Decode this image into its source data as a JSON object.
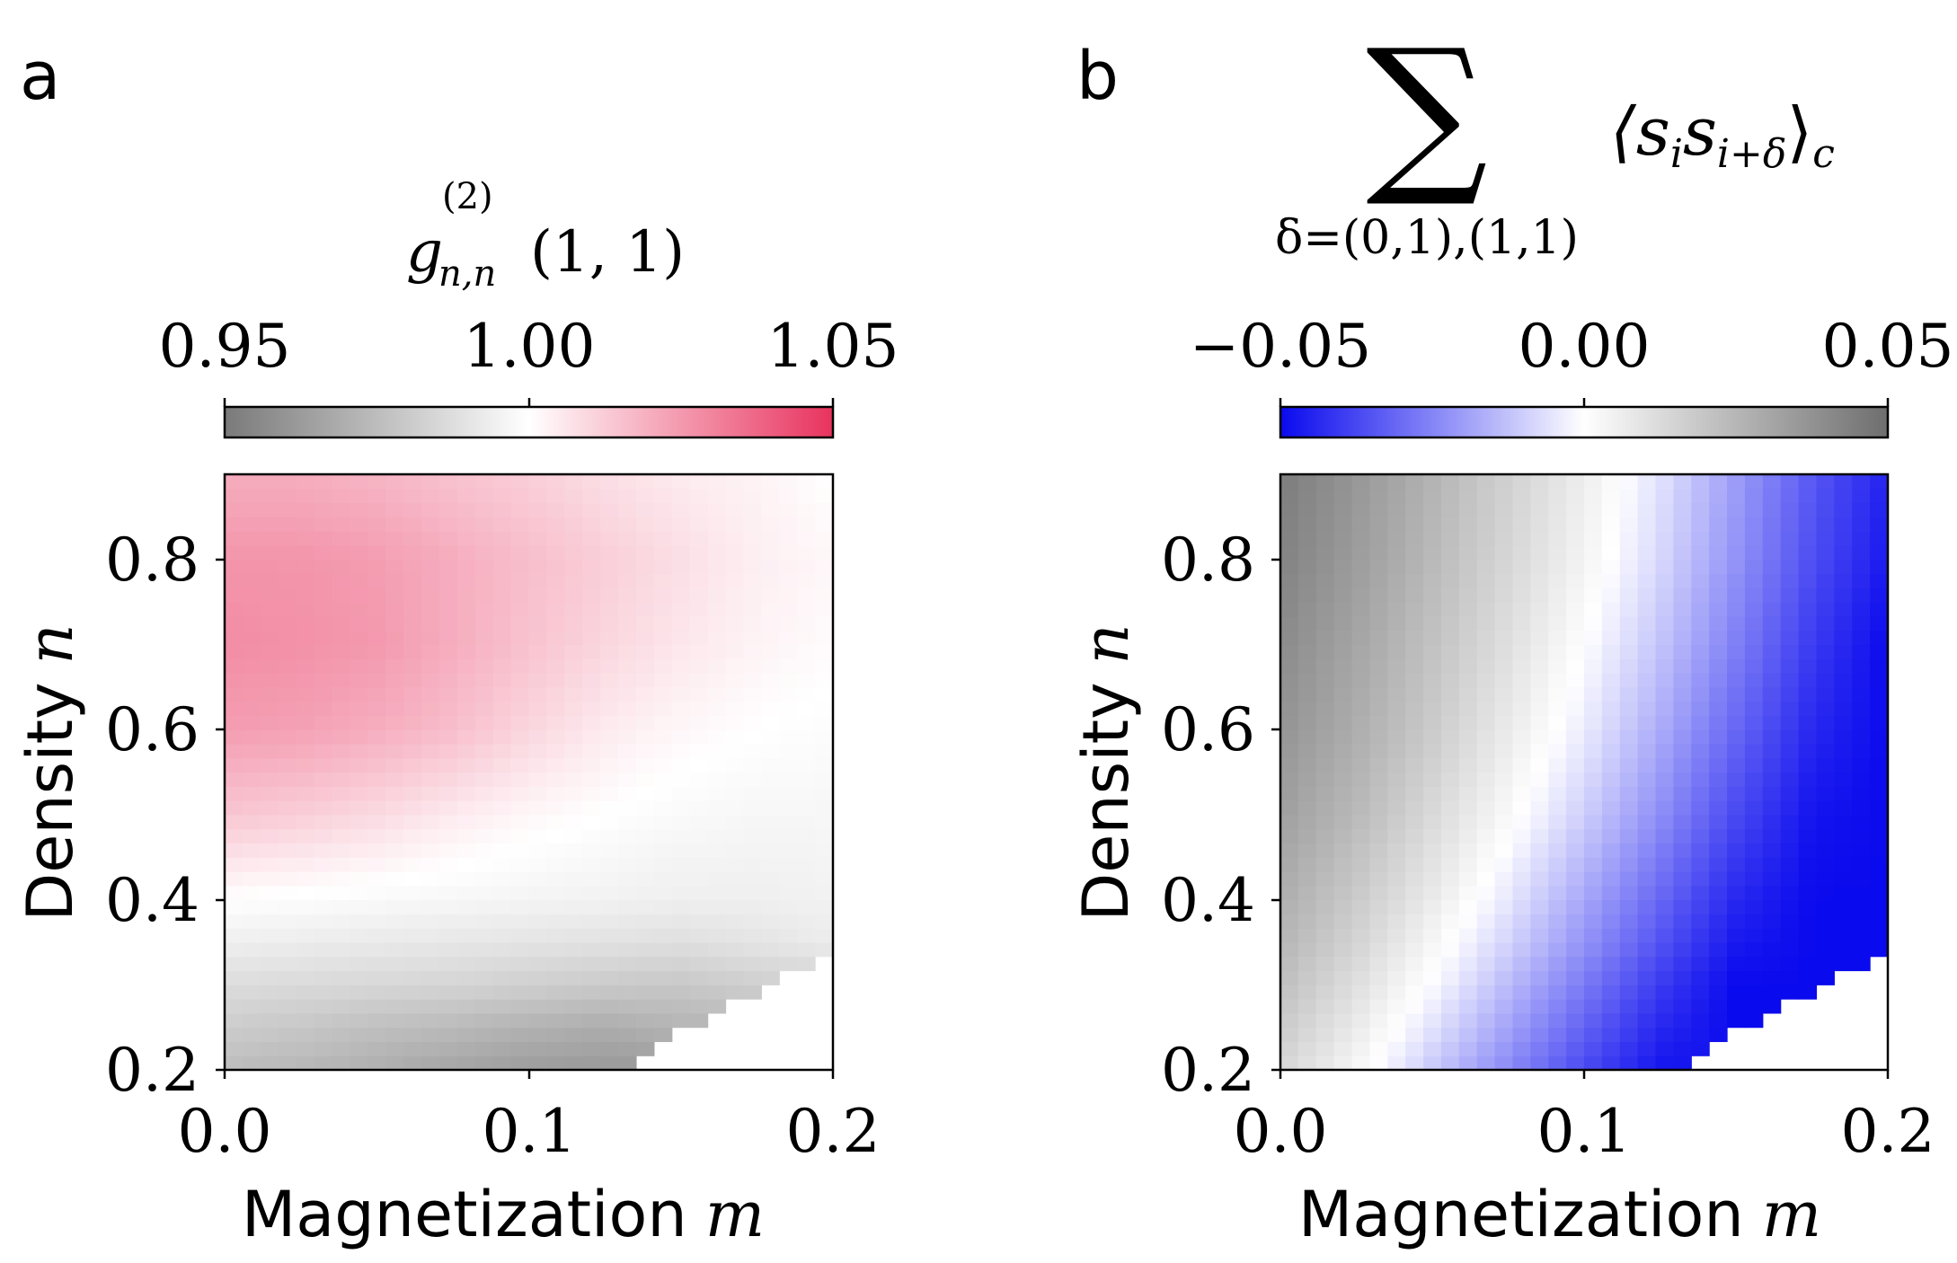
{
  "chart_data": [
    {
      "panel_label": "a",
      "type": "heatmap",
      "title": "",
      "colorbar": {
        "label_main": "g",
        "label_sub": "n,n",
        "label_sup": "(2)",
        "label_args": "(1, 1)",
        "ticks": [
          0.95,
          1.0,
          1.05
        ],
        "tick_labels": [
          "0.95",
          "1.00",
          "1.05"
        ],
        "colors": {
          "low": "#7a7a7a",
          "mid": "#ffffff",
          "high": "#e8335e"
        },
        "vmin": 0.95,
        "vmax": 1.05
      },
      "xlabel": "Magnetization",
      "xlabel_var": "m",
      "ylabel": "Density",
      "ylabel_var": "n",
      "xlim": [
        0.0,
        0.2
      ],
      "ylim": [
        0.2,
        0.9
      ],
      "xticks": [
        "0.0",
        "0.1",
        "0.2"
      ],
      "xtick_values": [
        0.0,
        0.1,
        0.2
      ],
      "yticks": [
        "0.2",
        "0.4",
        "0.6",
        "0.8"
      ],
      "ytick_values": [
        0.2,
        0.4,
        0.6,
        0.8
      ],
      "grid": {
        "m_values": [
          0.0,
          0.025,
          0.05,
          0.075,
          0.1,
          0.125,
          0.15,
          0.175,
          0.2
        ],
        "n_values": [
          0.9,
          0.8,
          0.7,
          0.6,
          0.5,
          0.4,
          0.35,
          0.3,
          0.25,
          0.2
        ],
        "values": [
          [
            1.02,
            1.02,
            1.018,
            1.015,
            1.012,
            1.008,
            1.005,
            1.003,
            1.0
          ],
          [
            1.026,
            1.026,
            1.024,
            1.02,
            1.016,
            1.012,
            1.008,
            1.004,
            1.002
          ],
          [
            1.028,
            1.027,
            1.025,
            1.02,
            1.015,
            1.01,
            1.006,
            1.003,
            1.001
          ],
          [
            1.024,
            1.023,
            1.02,
            1.016,
            1.01,
            1.005,
            1.002,
            1.0,
            0.999
          ],
          [
            1.014,
            1.012,
            1.009,
            1.005,
            1.002,
            1.0,
            0.998,
            0.997,
            0.997
          ],
          [
            1.0,
            0.999,
            0.998,
            0.997,
            0.996,
            0.995,
            0.994,
            0.994,
            0.995
          ],
          [
            0.994,
            0.993,
            0.992,
            0.991,
            0.99,
            0.989,
            0.988,
            0.99,
            0.993
          ],
          [
            0.987,
            0.986,
            0.985,
            0.984,
            0.982,
            0.98,
            0.979,
            0.982,
            null
          ],
          [
            0.981,
            0.979,
            0.976,
            0.974,
            0.971,
            0.969,
            0.972,
            null,
            null
          ],
          [
            0.975,
            0.973,
            0.97,
            0.966,
            0.963,
            0.962,
            null,
            null,
            null
          ]
        ]
      }
    },
    {
      "panel_label": "b",
      "type": "heatmap",
      "title": "",
      "colorbar": {
        "label_sum": "∑",
        "label_sum_sub": "δ=(0,1),(1,1)",
        "label_expr": "⟨s",
        "label_expr_i": "i",
        "label_expr_s2": "s",
        "label_expr_i2": "i+δ",
        "label_expr_close": "⟩",
        "label_expr_c": "c",
        "ticks": [
          -0.05,
          0.0,
          0.05
        ],
        "tick_labels": [
          "−0.05",
          "0.00",
          "0.05"
        ],
        "colors": {
          "low": "#0a0aee",
          "mid": "#ffffff",
          "high": "#6e6e6e"
        },
        "vmin": -0.05,
        "vmax": 0.05
      },
      "xlabel": "Magnetization",
      "xlabel_var": "m",
      "ylabel": "Density",
      "ylabel_var": "n",
      "xlim": [
        0.0,
        0.2
      ],
      "ylim": [
        0.2,
        0.9
      ],
      "xticks": [
        "0.0",
        "0.1",
        "0.2"
      ],
      "xtick_values": [
        0.0,
        0.1,
        0.2
      ],
      "yticks": [
        "0.2",
        "0.4",
        "0.6",
        "0.8"
      ],
      "ytick_values": [
        0.2,
        0.4,
        0.6,
        0.8
      ],
      "grid": {
        "m_values": [
          0.0,
          0.025,
          0.05,
          0.075,
          0.1,
          0.125,
          0.15,
          0.175,
          0.2
        ],
        "n_values": [
          0.9,
          0.8,
          0.7,
          0.6,
          0.5,
          0.4,
          0.35,
          0.3,
          0.25,
          0.2
        ],
        "values": [
          [
            0.045,
            0.036,
            0.026,
            0.016,
            0.006,
            -0.006,
            -0.02,
            -0.034,
            -0.045
          ],
          [
            0.043,
            0.034,
            0.024,
            0.014,
            0.004,
            -0.008,
            -0.022,
            -0.036,
            -0.047
          ],
          [
            0.04,
            0.031,
            0.021,
            0.011,
            0.0,
            -0.012,
            -0.026,
            -0.04,
            -0.05
          ],
          [
            0.037,
            0.028,
            0.018,
            0.007,
            -0.004,
            -0.017,
            -0.031,
            -0.044,
            -0.05
          ],
          [
            0.033,
            0.024,
            0.013,
            0.002,
            -0.01,
            -0.023,
            -0.037,
            -0.048,
            -0.05
          ],
          [
            0.028,
            0.018,
            0.007,
            -0.005,
            -0.018,
            -0.031,
            -0.044,
            -0.05,
            -0.05
          ],
          [
            0.025,
            0.015,
            0.003,
            -0.009,
            -0.022,
            -0.035,
            -0.047,
            -0.05,
            -0.05
          ],
          [
            0.022,
            0.011,
            -0.001,
            -0.014,
            -0.027,
            -0.04,
            -0.05,
            -0.05,
            null
          ],
          [
            0.018,
            0.007,
            -0.006,
            -0.019,
            -0.032,
            -0.044,
            -0.05,
            null,
            null
          ],
          [
            0.014,
            0.003,
            -0.011,
            -0.024,
            -0.037,
            -0.048,
            null,
            null,
            null
          ]
        ]
      }
    }
  ]
}
